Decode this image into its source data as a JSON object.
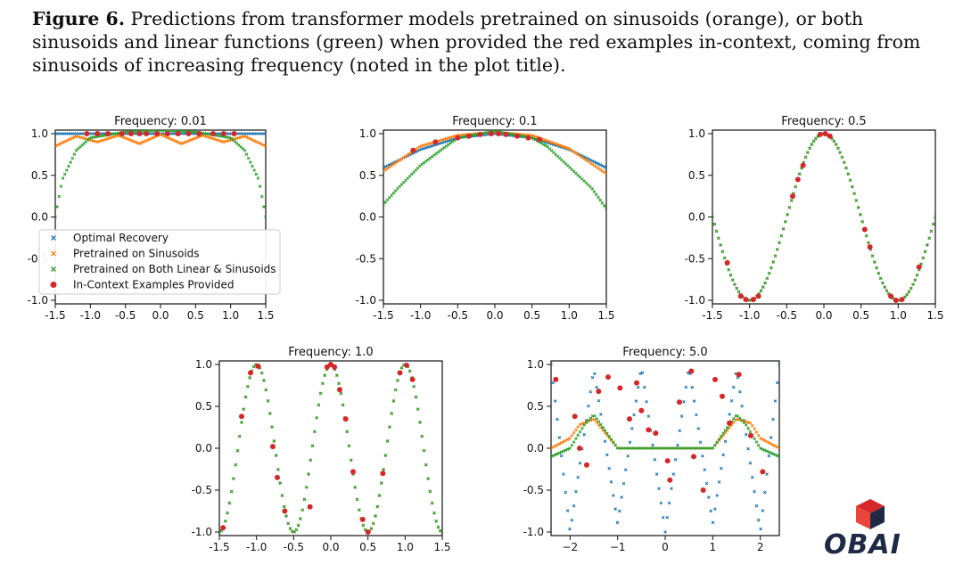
{
  "caption": {
    "label": "Figure 6.",
    "text": "Predictions from transformer models pretrained on sinusoids (orange), or both sinusoids and linear functions (green) when provided the red examples in-context, coming from sinusoids of increasing frequency (noted in the plot title)."
  },
  "colors": {
    "optimal": "#1f77b4",
    "sinusoids": "#ff7f0e",
    "both": "#2ca02c",
    "examples": "#d62728"
  },
  "chart_data": [
    {
      "type": "scatter",
      "title": "Frequency: 0.01",
      "frequency": 0.01,
      "xlim": [
        -1.5,
        1.5
      ],
      "ylim": [
        -1.0,
        1.0
      ],
      "xticks": [
        "-1.5",
        "-1.0",
        "-0.5",
        "0.0",
        "0.5",
        "1.0",
        "1.5"
      ],
      "yticks": [
        "-1.0",
        "-0.5",
        "0.0",
        "0.5",
        "1.0"
      ],
      "legend": {
        "placement": "lower-left",
        "entries": [
          "Optimal Recovery",
          "Pretrained on Sinusoids",
          "Pretrained on Both Linear & Sinusoids",
          "In-Context Examples Provided"
        ]
      },
      "series": [
        {
          "name": "Optimal Recovery",
          "x": [
            -1.5,
            -1.0,
            -0.5,
            0.0,
            0.5,
            1.0,
            1.5
          ],
          "y": [
            1.0,
            1.0,
            1.0,
            1.0,
            1.0,
            1.0,
            1.0
          ]
        },
        {
          "name": "Pretrained on Sinusoids",
          "x": [
            -1.5,
            -1.2,
            -0.9,
            -0.6,
            -0.3,
            0.0,
            0.3,
            0.6,
            0.9,
            1.2,
            1.5
          ],
          "y": [
            0.85,
            0.97,
            0.9,
            0.98,
            0.88,
            0.99,
            0.88,
            0.98,
            0.9,
            0.97,
            0.85
          ]
        },
        {
          "name": "Pretrained on Both Linear & Sinusoids",
          "x": [
            -1.5,
            -1.4,
            -1.2,
            -1.0,
            -0.5,
            0.0,
            0.5,
            1.0,
            1.2,
            1.4,
            1.5
          ],
          "y": [
            0.0,
            0.45,
            0.8,
            0.95,
            1.02,
            1.04,
            1.02,
            0.95,
            0.8,
            0.45,
            0.0
          ]
        },
        {
          "name": "In-Context Examples Provided",
          "x": [
            -1.05,
            -0.9,
            -0.75,
            -0.55,
            -0.42,
            -0.3,
            -0.2,
            -0.05,
            0.1,
            0.25,
            0.4,
            0.55,
            0.75,
            0.9,
            1.05
          ],
          "y": [
            1.0,
            1.0,
            1.0,
            1.0,
            1.0,
            1.0,
            1.0,
            1.0,
            1.0,
            1.0,
            1.0,
            1.0,
            1.0,
            1.0,
            1.0
          ]
        }
      ]
    },
    {
      "type": "scatter",
      "title": "Frequency: 0.1",
      "frequency": 0.1,
      "xlim": [
        -1.5,
        1.5
      ],
      "ylim": [
        -1.0,
        1.0
      ],
      "xticks": [
        "-1.5",
        "-1.0",
        "-0.5",
        "0.0",
        "0.5",
        "1.0",
        "1.5"
      ],
      "yticks": [
        "-1.0",
        "-0.5",
        "0.0",
        "0.5",
        "1.0"
      ],
      "series": [
        {
          "name": "Optimal Recovery",
          "x": [
            -1.5,
            -1.0,
            -0.5,
            0.0,
            0.5,
            1.0,
            1.5
          ],
          "y": [
            0.59,
            0.81,
            0.95,
            1.0,
            0.95,
            0.81,
            0.59
          ]
        },
        {
          "name": "Pretrained on Sinusoids",
          "x": [
            -1.5,
            -1.0,
            -0.5,
            0.0,
            0.5,
            1.0,
            1.5
          ],
          "y": [
            0.55,
            0.85,
            0.98,
            1.02,
            0.98,
            0.82,
            0.52
          ]
        },
        {
          "name": "Pretrained on Both Linear & Sinusoids",
          "x": [
            -1.5,
            -1.3,
            -1.0,
            -0.7,
            -0.5,
            0.0,
            0.5,
            0.7,
            1.0,
            1.3,
            1.5
          ],
          "y": [
            0.15,
            0.35,
            0.62,
            0.82,
            0.95,
            1.03,
            0.95,
            0.85,
            0.6,
            0.35,
            0.1
          ]
        },
        {
          "name": "In-Context Examples Provided",
          "x": [
            -1.1,
            -0.8,
            -0.5,
            -0.35,
            -0.2,
            -0.05,
            0.05,
            0.15,
            0.3,
            0.45,
            0.6
          ],
          "y": [
            0.8,
            0.9,
            0.95,
            0.97,
            0.99,
            1.0,
            1.0,
            0.99,
            0.97,
            0.95,
            0.93
          ]
        }
      ]
    },
    {
      "type": "scatter",
      "title": "Frequency: 0.5",
      "frequency": 0.5,
      "xlim": [
        -1.5,
        1.5
      ],
      "ylim": [
        -1.0,
        1.0
      ],
      "xticks": [
        "-1.5",
        "-1.0",
        "-0.5",
        "0.0",
        "0.5",
        "1.0",
        "1.5"
      ],
      "yticks": [
        "-1.0",
        "-0.5",
        "0.0",
        "0.5",
        "1.0"
      ],
      "series": [
        {
          "name": "Optimal Recovery",
          "x": [
            -1.5,
            -1.0,
            -0.5,
            0.0,
            0.5,
            1.0,
            1.5
          ],
          "y": [
            0.0,
            -1.0,
            0.0,
            1.0,
            0.0,
            -1.0,
            0.0
          ]
        },
        {
          "name": "Pretrained on Sinusoids",
          "x": [
            -1.5,
            -1.0,
            -0.5,
            0.0,
            0.5,
            1.0,
            1.5
          ],
          "y": [
            0.0,
            -1.0,
            0.0,
            1.0,
            0.0,
            -1.0,
            0.0
          ]
        },
        {
          "name": "Pretrained on Both Linear & Sinusoids",
          "x": [
            -1.5,
            -1.0,
            -0.5,
            0.0,
            0.5,
            1.0,
            1.5
          ],
          "y": [
            0.0,
            -1.0,
            0.0,
            1.0,
            0.0,
            -1.0,
            0.0
          ]
        },
        {
          "name": "In-Context Examples Provided",
          "x": [
            -1.3,
            -1.12,
            -1.05,
            -0.95,
            -0.88,
            -0.42,
            -0.35,
            -0.28,
            -0.05,
            0.02,
            0.08,
            0.55,
            0.62,
            0.9,
            0.97,
            1.05,
            1.28
          ],
          "y": [
            -0.55,
            -0.95,
            -0.99,
            -0.99,
            -0.95,
            0.25,
            0.45,
            0.62,
            0.99,
            1.0,
            0.97,
            -0.15,
            -0.36,
            -0.95,
            -1.0,
            -0.99,
            -0.6
          ]
        }
      ]
    },
    {
      "type": "scatter",
      "title": "Frequency: 1.0",
      "frequency": 1.0,
      "xlim": [
        -1.5,
        1.5
      ],
      "ylim": [
        -1.0,
        1.0
      ],
      "xticks": [
        "-1.5",
        "-1.0",
        "-0.5",
        "0.0",
        "0.5",
        "1.0",
        "1.5"
      ],
      "yticks": [
        "-1.0",
        "-0.5",
        "0.0",
        "0.5",
        "1.0"
      ],
      "series": [
        {
          "name": "Optimal Recovery",
          "x": [
            -1.5,
            -1.0,
            -0.5,
            0.0,
            0.5,
            1.0,
            1.5
          ],
          "y": [
            -1.0,
            1.0,
            -1.0,
            1.0,
            -1.0,
            1.0,
            -1.0
          ]
        },
        {
          "name": "Pretrained on Sinusoids",
          "x": [
            -1.5,
            -1.0,
            -0.5,
            0.0,
            0.5,
            1.0,
            1.5
          ],
          "y": [
            -1.0,
            1.0,
            -1.0,
            1.0,
            -1.0,
            1.0,
            -1.0
          ]
        },
        {
          "name": "Pretrained on Both Linear & Sinusoids",
          "x": [
            -1.5,
            -1.0,
            -0.5,
            0.0,
            0.5,
            1.0,
            1.5
          ],
          "y": [
            -1.0,
            1.0,
            -1.0,
            1.0,
            -1.0,
            1.0,
            -1.0
          ]
        },
        {
          "name": "In-Context Examples Provided",
          "x": [
            -1.45,
            -1.2,
            -1.08,
            -0.98,
            -0.78,
            -0.72,
            -0.62,
            -0.28,
            -0.05,
            0.0,
            0.05,
            0.12,
            0.2,
            0.3,
            0.43,
            0.5,
            0.7,
            0.93,
            1.02,
            1.1
          ],
          "y": [
            -0.95,
            0.38,
            0.9,
            0.98,
            0.02,
            -0.35,
            -0.75,
            -0.7,
            0.97,
            1.0,
            0.97,
            0.7,
            0.35,
            -0.28,
            -0.85,
            -1.0,
            -0.3,
            0.9,
            0.99,
            0.82
          ]
        }
      ]
    },
    {
      "type": "scatter",
      "title": "Frequency: 5.0",
      "frequency": 5.0,
      "xlim": [
        -2.4,
        2.4
      ],
      "ylim": [
        -1.0,
        1.0
      ],
      "xticks": [
        "−2",
        "−1",
        "0",
        "1",
        "2"
      ],
      "yticks": [
        "-1.0",
        "-0.5",
        "0.0",
        "0.5",
        "1.0"
      ],
      "series": [
        {
          "name": "Optimal Recovery",
          "x": [
            -2.4,
            -2.0,
            -1.5,
            -1.0,
            -0.5,
            0.0,
            0.5,
            1.0,
            1.5,
            2.0,
            2.4
          ],
          "y": [
            1.0,
            -1.0,
            0.95,
            -0.9,
            0.98,
            -1.0,
            0.98,
            -0.9,
            0.95,
            -1.0,
            1.0
          ]
        },
        {
          "name": "Pretrained on Sinusoids",
          "x": [
            -2.4,
            -2.0,
            -1.8,
            -1.5,
            -1.0,
            0.0,
            1.0,
            1.5,
            1.8,
            2.0,
            2.4
          ],
          "y": [
            0.0,
            0.12,
            0.28,
            0.35,
            0.0,
            0.0,
            0.0,
            0.35,
            0.3,
            0.12,
            0.0
          ]
        },
        {
          "name": "Pretrained on Both Linear & Sinusoids",
          "x": [
            -2.4,
            -2.0,
            -1.7,
            -1.5,
            -1.0,
            0.0,
            1.0,
            1.5,
            1.7,
            2.0,
            2.4
          ],
          "y": [
            -0.1,
            0.0,
            0.28,
            0.4,
            0.0,
            0.0,
            0.0,
            0.4,
            0.28,
            0.0,
            -0.1
          ]
        },
        {
          "name": "In-Context Examples Provided",
          "x": [
            -2.3,
            -1.9,
            -1.8,
            -1.65,
            -1.4,
            -1.2,
            -0.95,
            -0.75,
            -0.6,
            -0.5,
            -0.35,
            -0.2,
            0.05,
            0.1,
            0.3,
            0.55,
            0.6,
            0.8,
            1.05,
            1.2,
            1.35,
            1.55,
            1.8,
            2.05
          ],
          "y": [
            0.82,
            0.38,
            0.0,
            -0.2,
            0.68,
            0.85,
            0.72,
            0.35,
            0.78,
            0.45,
            0.22,
            0.18,
            -0.15,
            -0.38,
            0.55,
            0.92,
            -0.1,
            -0.5,
            0.82,
            0.62,
            0.3,
            0.88,
            0.15,
            -0.28
          ]
        }
      ]
    }
  ]
}
